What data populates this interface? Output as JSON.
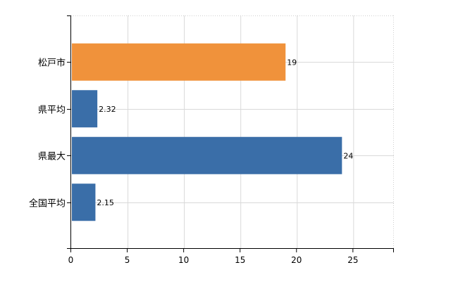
{
  "chart_data": {
    "type": "bar",
    "orientation": "horizontal",
    "categories": [
      "松戸市",
      "県平均",
      "県最大",
      "全国平均"
    ],
    "values": [
      19,
      2.32,
      24,
      2.15
    ],
    "value_labels": [
      "19",
      "2.32",
      "24",
      "2.15"
    ],
    "bar_colors": [
      "#f0923b",
      "#3a6ea8",
      "#3a6ea8",
      "#3a6ea8"
    ],
    "xlim": [
      0,
      28.6
    ],
    "xticks": [
      0,
      5,
      10,
      15,
      20,
      25
    ],
    "grid": true,
    "title": "",
    "xlabel": "",
    "ylabel": ""
  }
}
